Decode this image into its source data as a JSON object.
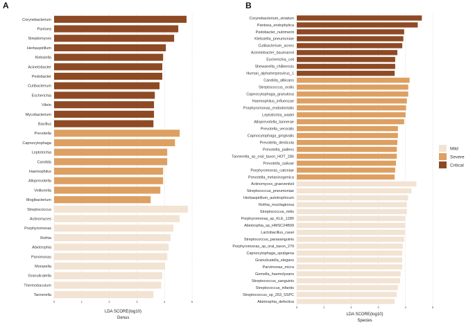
{
  "colors": {
    "Mild": "#f2e3d3",
    "Severe": "#dda062",
    "Critical": "#8e4a24",
    "grid": "#cccccc"
  },
  "legend": {
    "items": [
      "Mild",
      "Severe",
      "Critical"
    ],
    "position": "right"
  },
  "chart_data": [
    {
      "type": "bar",
      "orientation": "horizontal",
      "panel_label": "A",
      "xlabel": "LDA SCORE(log10)",
      "subtitle": "Genus",
      "xlim": [
        0,
        5
      ],
      "xticks": [
        "0",
        "1",
        "2",
        "3",
        "4",
        "5"
      ],
      "grid": true,
      "categories": [
        "Corynebacterium",
        "Pantoea",
        "Streptomyces",
        "Herbaspirillum",
        "Klebsiella",
        "Acinetobacter",
        "Pedobacter",
        "Cutibacterium",
        "Escherichia",
        "Vibrio",
        "Mycobacterium",
        "Bacillus",
        "Prevotella",
        "Capnocytophaga",
        "Leptotrichia",
        "Candida",
        "Haemophilus",
        "Alloprevotella",
        "Veillonella",
        "Mogibacterium",
        "Streptococcus",
        "Actinomyces",
        "Porphyromonas",
        "Rothia",
        "Abiotrophia",
        "Parvimonas",
        "Moraxella",
        "Granulicatella",
        "Thermobaculum",
        "Tannerella"
      ],
      "values": [
        4.8,
        4.5,
        4.35,
        4.05,
        3.95,
        3.92,
        3.92,
        3.82,
        3.65,
        3.62,
        3.62,
        3.6,
        4.55,
        4.38,
        4.1,
        4.1,
        3.95,
        3.95,
        3.85,
        3.5,
        4.85,
        4.55,
        4.32,
        4.22,
        4.15,
        4.1,
        4.02,
        3.92,
        3.88,
        3.6
      ],
      "groups": [
        "Critical",
        "Critical",
        "Critical",
        "Critical",
        "Critical",
        "Critical",
        "Critical",
        "Critical",
        "Critical",
        "Critical",
        "Critical",
        "Critical",
        "Severe",
        "Severe",
        "Severe",
        "Severe",
        "Severe",
        "Severe",
        "Severe",
        "Severe",
        "Mild",
        "Mild",
        "Mild",
        "Mild",
        "Mild",
        "Mild",
        "Mild",
        "Mild",
        "Mild",
        "Mild"
      ]
    },
    {
      "type": "bar",
      "orientation": "horizontal",
      "panel_label": "B",
      "xlabel": "LDA SCORE(log10)",
      "subtitle": "Species",
      "xlim": [
        0,
        5
      ],
      "xticks": [
        "0",
        "1",
        "2",
        "3",
        "4",
        "5"
      ],
      "grid": true,
      "categories": [
        "Corynebacterium_striatum",
        "Pantoea_endophytica",
        "Pedobacter_nutrimenti",
        "Klebsiella_pneumoniae",
        "Cutibacterium_acnes",
        "Acinetobacter_baumannii",
        "Escherichia_coli",
        "Shewanella_chilikensis",
        "Human_alphaherpesvirus_1",
        "Candida_albicans",
        "Streptococcus_oralis",
        "Capnocytophaga_granulosa",
        "Haemophilus_influenzae",
        "Porphyromonas_endodontalis",
        "Leptotrichia_wadei",
        "Alloprevotella_tannerae",
        "Prevotella_veroralis",
        "Capnocytophaga_gingivalis",
        "Prevotella_denticola",
        "Prevotella_pallens",
        "Tannerella_sp_oral_taxon_HOT_286",
        "Prevotella_salivae",
        "Porphyromonas_catoniae",
        "Prevotella_melaninogenica",
        "Actinomyces_graevenitzii",
        "Streptococcus_pneumoniae",
        "Herbaspirillum_autotrophicum",
        "Rothia_mucilaginosa",
        "Streptococcus_mitis",
        "Porphyromonas_sp_KLE_1280",
        "Abiotrophia_sp_HMSC24B09",
        "Lactobacillus_casei",
        "Streptococcus_parasanguinis",
        "Porphyromonas_sp_oral_taxon_279",
        "Capnocytophaga_sputigena",
        "Granulicatella_elegans",
        "Parvimonas_micra",
        "Gemella_haemolysans",
        "Streptococcus_sanguinis",
        "Streptococcus_infantis",
        "Streptococcus_sp_263_SSPC",
        "Abiotrophia_defectiva"
      ],
      "values": [
        4.6,
        4.45,
        3.95,
        3.92,
        3.88,
        3.7,
        3.62,
        3.62,
        3.6,
        4.15,
        4.1,
        4.1,
        4.05,
        4.02,
        4.0,
        3.95,
        3.72,
        3.72,
        3.7,
        3.68,
        3.68,
        3.65,
        3.62,
        3.6,
        4.4,
        4.22,
        4.1,
        4.05,
        4.05,
        3.98,
        3.98,
        3.98,
        3.95,
        3.9,
        3.88,
        3.88,
        3.88,
        3.82,
        3.8,
        3.72,
        3.68,
        3.6
      ],
      "groups": [
        "Critical",
        "Critical",
        "Critical",
        "Critical",
        "Critical",
        "Critical",
        "Critical",
        "Critical",
        "Critical",
        "Severe",
        "Severe",
        "Severe",
        "Severe",
        "Severe",
        "Severe",
        "Severe",
        "Severe",
        "Severe",
        "Severe",
        "Severe",
        "Severe",
        "Severe",
        "Severe",
        "Severe",
        "Mild",
        "Mild",
        "Mild",
        "Mild",
        "Mild",
        "Mild",
        "Mild",
        "Mild",
        "Mild",
        "Mild",
        "Mild",
        "Mild",
        "Mild",
        "Mild",
        "Mild",
        "Mild",
        "Mild",
        "Mild"
      ]
    }
  ]
}
